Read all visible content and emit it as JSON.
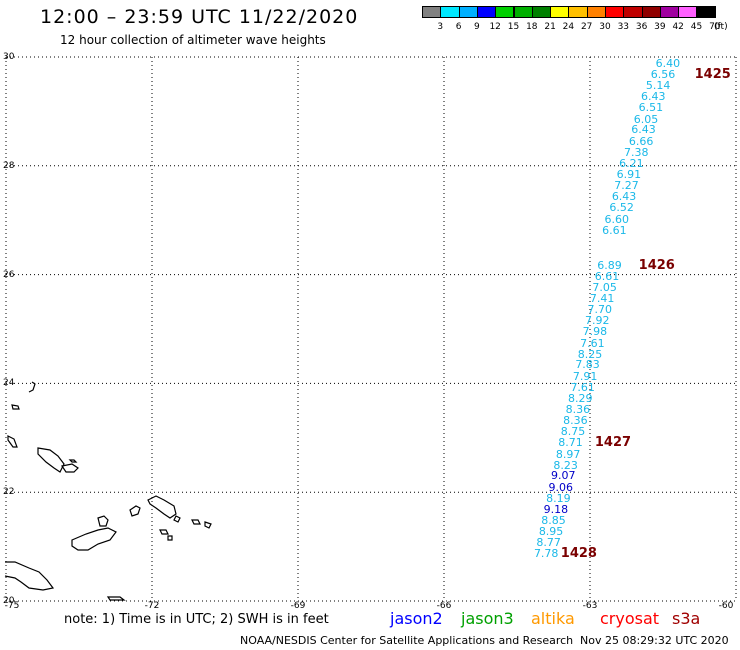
{
  "header": {
    "title": "12:00 – 23:59 UTC 11/22/2020",
    "subtitle": "12 hour collection of altimeter wave heights"
  },
  "color_scale": {
    "labels": [
      "3",
      "6",
      "9",
      "12",
      "15",
      "18",
      "21",
      "24",
      "27",
      "30",
      "33",
      "36",
      "39",
      "42",
      "45",
      "70"
    ],
    "unit": "(ft)",
    "colors": [
      "#808080",
      "#00e8ff",
      "#00b0ff",
      "#0000ff",
      "#00d000",
      "#00b000",
      "#008000",
      "#ffff00",
      "#ffc000",
      "#ff8000",
      "#ff0000",
      "#c00000",
      "#900000",
      "#a000a0",
      "#ff60ff",
      "#000000"
    ]
  },
  "map": {
    "lat_range": [
      20,
      30
    ],
    "lon_range": [
      -75,
      -60
    ],
    "lat_ticks": [
      "30",
      "28",
      "26",
      "24",
      "22",
      "20"
    ],
    "lon_ticks": [
      "-75",
      "-72",
      "-69",
      "-66",
      "-63",
      "-60"
    ],
    "observations": [
      {
        "v": "6.40",
        "lat": 29.88,
        "lon": -61.4,
        "c": "#1ab8e8"
      },
      {
        "v": "6.56",
        "lat": 29.67,
        "lon": -61.5,
        "c": "#1ab8e8"
      },
      {
        "v": "5.14",
        "lat": 29.47,
        "lon": -61.6,
        "c": "#1ab8e8"
      },
      {
        "v": "6.43",
        "lat": 29.26,
        "lon": -61.7,
        "c": "#1ab8e8"
      },
      {
        "v": "6.51",
        "lat": 29.06,
        "lon": -61.75,
        "c": "#1ab8e8"
      },
      {
        "v": "6.05",
        "lat": 28.85,
        "lon": -61.85,
        "c": "#1ab8e8"
      },
      {
        "v": "6.43",
        "lat": 28.65,
        "lon": -61.9,
        "c": "#1ab8e8"
      },
      {
        "v": "6.66",
        "lat": 28.44,
        "lon": -61.95,
        "c": "#1ab8e8"
      },
      {
        "v": "7.38",
        "lat": 28.24,
        "lon": -62.05,
        "c": "#1ab8e8"
      },
      {
        "v": "6.21",
        "lat": 28.03,
        "lon": -62.15,
        "c": "#1ab8e8"
      },
      {
        "v": "6.91",
        "lat": 27.83,
        "lon": -62.2,
        "c": "#1ab8e8"
      },
      {
        "v": "7.27",
        "lat": 27.63,
        "lon": -62.25,
        "c": "#1ab8e8"
      },
      {
        "v": "6.43",
        "lat": 27.42,
        "lon": -62.3,
        "c": "#1ab8e8"
      },
      {
        "v": "6.52",
        "lat": 27.22,
        "lon": -62.35,
        "c": "#1ab8e8"
      },
      {
        "v": "6.60",
        "lat": 27.01,
        "lon": -62.45,
        "c": "#1ab8e8"
      },
      {
        "v": "6.61",
        "lat": 26.81,
        "lon": -62.5,
        "c": "#1ab8e8"
      },
      {
        "v": "6.89",
        "lat": 26.16,
        "lon": -62.6,
        "c": "#1ab8e8"
      },
      {
        "v": "6.61",
        "lat": 25.96,
        "lon": -62.65,
        "c": "#1ab8e8"
      },
      {
        "v": "7.05",
        "lat": 25.75,
        "lon": -62.7,
        "c": "#1ab8e8"
      },
      {
        "v": "7.41",
        "lat": 25.55,
        "lon": -62.75,
        "c": "#1ab8e8"
      },
      {
        "v": "7.70",
        "lat": 25.35,
        "lon": -62.8,
        "c": "#1ab8e8"
      },
      {
        "v": "7.92",
        "lat": 25.14,
        "lon": -62.85,
        "c": "#1ab8e8"
      },
      {
        "v": "7.98",
        "lat": 24.94,
        "lon": -62.9,
        "c": "#1ab8e8"
      },
      {
        "v": "7.61",
        "lat": 24.73,
        "lon": -62.95,
        "c": "#1ab8e8"
      },
      {
        "v": "8.25",
        "lat": 24.53,
        "lon": -63.0,
        "c": "#1ab8e8"
      },
      {
        "v": "7.83",
        "lat": 24.33,
        "lon": -63.05,
        "c": "#1ab8e8"
      },
      {
        "v": "7.91",
        "lat": 24.12,
        "lon": -63.1,
        "c": "#1ab8e8"
      },
      {
        "v": "7.61",
        "lat": 23.92,
        "lon": -63.15,
        "c": "#1ab8e8"
      },
      {
        "v": "8.29",
        "lat": 23.71,
        "lon": -63.2,
        "c": "#1ab8e8"
      },
      {
        "v": "8.36",
        "lat": 23.51,
        "lon": -63.25,
        "c": "#1ab8e8"
      },
      {
        "v": "8.36",
        "lat": 23.31,
        "lon": -63.3,
        "c": "#1ab8e8"
      },
      {
        "v": "8.75",
        "lat": 23.1,
        "lon": -63.35,
        "c": "#1ab8e8"
      },
      {
        "v": "8.71",
        "lat": 22.9,
        "lon": -63.4,
        "c": "#1ab8e8"
      },
      {
        "v": "8.97",
        "lat": 22.69,
        "lon": -63.45,
        "c": "#1ab8e8"
      },
      {
        "v": "8.23",
        "lat": 22.49,
        "lon": -63.5,
        "c": "#1ab8e8"
      },
      {
        "v": "9.07",
        "lat": 22.29,
        "lon": -63.55,
        "c": "#0000c8"
      },
      {
        "v": "9.06",
        "lat": 22.08,
        "lon": -63.6,
        "c": "#0000c8"
      },
      {
        "v": "8.19",
        "lat": 21.88,
        "lon": -63.65,
        "c": "#1ab8e8"
      },
      {
        "v": "9.18",
        "lat": 21.67,
        "lon": -63.7,
        "c": "#0000c8"
      },
      {
        "v": "8.85",
        "lat": 21.47,
        "lon": -63.75,
        "c": "#1ab8e8"
      },
      {
        "v": "8.95",
        "lat": 21.27,
        "lon": -63.8,
        "c": "#1ab8e8"
      },
      {
        "v": "8.77",
        "lat": 21.06,
        "lon": -63.85,
        "c": "#1ab8e8"
      },
      {
        "v": "7.78",
        "lat": 20.86,
        "lon": -63.9,
        "c": "#1ab8e8"
      }
    ],
    "cycles": [
      {
        "label": "1425",
        "lat": 29.67,
        "lon": -60.85
      },
      {
        "label": "1426",
        "lat": 26.16,
        "lon": -62.0
      },
      {
        "label": "1427",
        "lat": 22.9,
        "lon": -62.9
      },
      {
        "label": "1428",
        "lat": 20.86,
        "lon": -63.6
      }
    ]
  },
  "footer": {
    "note": "note: 1) Time is in UTC; 2) SWH is in feet",
    "satellites": [
      {
        "name": "jason2",
        "color": "#0000ff"
      },
      {
        "name": "jason3",
        "color": "#00a000"
      },
      {
        "name": "altika",
        "color": "#ff9900"
      },
      {
        "name": "cryosat",
        "color": "#ff0000"
      },
      {
        "name": "s3a",
        "color": "#a00000"
      }
    ],
    "credit": "NOAA/NESDIS Center for Satellite Applications and Research",
    "timestamp": "Nov 25 08:29:32 UTC 2020"
  }
}
